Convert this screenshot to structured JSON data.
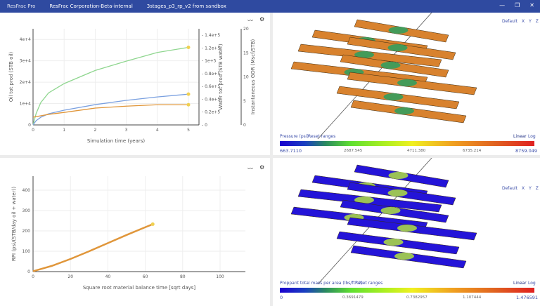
{
  "titlebar": {
    "app": "ResFrac Pro",
    "org": "ResFrac Corporation-Beta-internal",
    "project": "3stages_p3_rp_v2 from sandbox",
    "controls": [
      "—",
      "❐",
      "✕"
    ]
  },
  "colors": {
    "titlebar": "#2f4aa0",
    "green": "#8fd68f",
    "blue": "#7aa0e0",
    "orange": "#e0963a",
    "marker": "#f0d050",
    "fracture_top": "#d8822e",
    "fracture_bottom": "#2414d8"
  },
  "chart_data": [
    {
      "type": "line",
      "xlabel": "Simulation time (years)",
      "xlim": [
        0,
        5.3
      ],
      "xticks": [
        "0",
        "1",
        "2",
        "3",
        "4",
        "5"
      ],
      "axes": [
        {
          "id": "oil",
          "label": "Oil tot prod (STB oil)",
          "ylim": [
            0,
            45000
          ],
          "ticks": [
            {
              "v": 0,
              "t": "0"
            },
            {
              "v": 10000,
              "t": "1e+4"
            },
            {
              "v": 20000,
              "t": "2e+4"
            },
            {
              "v": 30000,
              "t": "3e+4"
            },
            {
              "v": 40000,
              "t": "4e+4"
            }
          ]
        },
        {
          "id": "water",
          "label": "Water tot prod (STB water)",
          "ylim": [
            0,
            150000
          ],
          "ticks": [
            {
              "v": 0,
              "t": "0"
            },
            {
              "v": 20000,
              "t": "0.2e+5"
            },
            {
              "v": 40000,
              "t": "0.4e+5"
            },
            {
              "v": 60000,
              "t": "0.6e+5"
            },
            {
              "v": 80000,
              "t": "0.8e+5"
            },
            {
              "v": 100000,
              "t": "1e+5"
            },
            {
              "v": 120000,
              "t": "1.2e+5"
            },
            {
              "v": 140000,
              "t": "1.4e+5"
            }
          ]
        },
        {
          "id": "gor",
          "label": "Instantaneous GOR (Mscf/STB)",
          "ylim": [
            0,
            20
          ],
          "ticks": [
            {
              "v": 0,
              "t": "0"
            },
            {
              "v": 5,
              "t": "5"
            },
            {
              "v": 10,
              "t": "10"
            },
            {
              "v": 15,
              "t": "15"
            },
            {
              "v": 20,
              "t": "20"
            }
          ]
        }
      ],
      "series": [
        {
          "axis": "water",
          "color": "#8fd68f",
          "x": [
            0,
            0.1,
            0.25,
            0.5,
            1,
            2,
            3,
            4,
            5
          ],
          "y": [
            0,
            18000,
            35000,
            50000,
            64500,
            85000,
            99500,
            113000,
            121000
          ]
        },
        {
          "axis": "oil",
          "color": "#7aa0e0",
          "x": [
            0,
            0.1,
            0.25,
            0.5,
            1,
            2,
            3,
            4,
            5
          ],
          "y": [
            0,
            2000,
            3600,
            5200,
            6900,
            9500,
            11500,
            13100,
            14400
          ]
        },
        {
          "axis": "gor",
          "color": "#e0963a",
          "x": [
            0,
            0.5,
            1,
            2,
            3,
            4,
            5
          ],
          "y": [
            1.6,
            2.2,
            2.6,
            3.5,
            3.9,
            4.2,
            4.2
          ]
        }
      ]
    },
    {
      "type": "line",
      "xlabel": "Square root material balance time [sqrt days]",
      "ylabel": "RPI (psi/(STB/day oil + water))",
      "xlim": [
        0,
        113
      ],
      "ylim": [
        0,
        470
      ],
      "xticks": [
        0,
        20,
        40,
        60,
        80,
        100
      ],
      "yticks": [
        0,
        100,
        200,
        300,
        400
      ],
      "series": [
        {
          "color": "#e0963a",
          "x": [
            0,
            5,
            10,
            20,
            30,
            40,
            50,
            60,
            64
          ],
          "y": [
            2,
            15,
            28,
            62,
            100,
            140,
            180,
            218,
            233
          ]
        }
      ]
    }
  ],
  "view_top": {
    "view_label": "Default",
    "axes": [
      "X",
      "Y",
      "Z"
    ],
    "colorbar_title": "Pressure (psi)",
    "reset": "Reset ranges",
    "linear": "Linear",
    "log": "Log",
    "ticks": [
      "663.7110",
      "2687.545",
      "4711.380",
      "6735.214",
      "8759.049"
    ]
  },
  "view_bottom": {
    "view_label": "Default",
    "axes": [
      "X",
      "Y",
      "Z"
    ],
    "colorbar_title": "Proppant total mass per area (lbs/ft^2)",
    "reset": "Reset ranges",
    "linear": "Linear",
    "log": "Log",
    "ticks": [
      "0",
      "0.3691479",
      "0.7382957",
      "1.107444",
      "1.476591"
    ]
  }
}
